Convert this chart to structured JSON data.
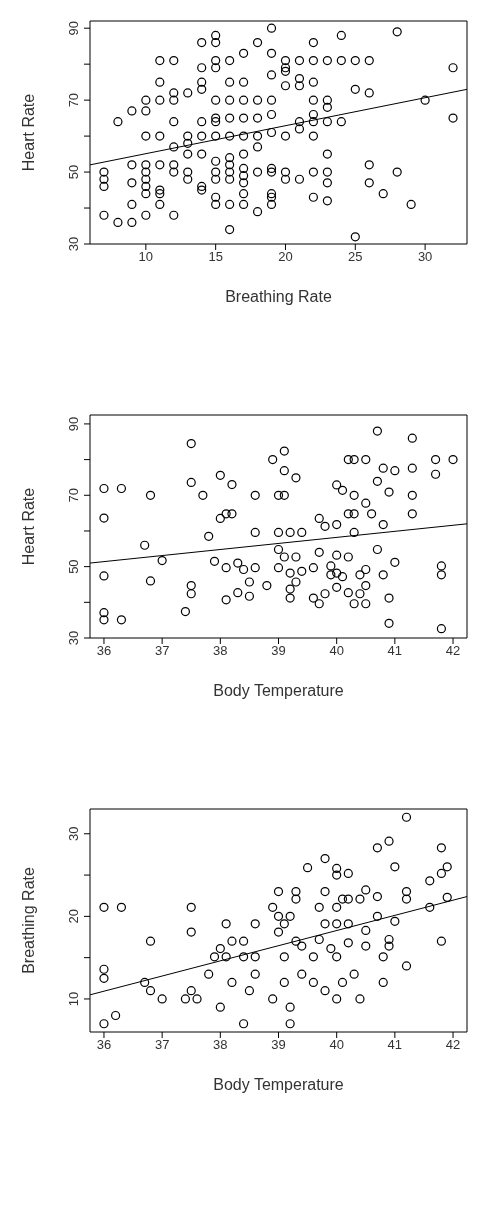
{
  "chart_data": [
    {
      "type": "scatter",
      "xlabel": "Breathing Rate",
      "ylabel": "Heart Rate",
      "xlim": [
        6,
        33
      ],
      "ylim": [
        30,
        92
      ],
      "xticks": [
        10,
        15,
        20,
        25,
        30
      ],
      "yticks": [
        30,
        {
          "value": 40,
          "label": null
        },
        50,
        {
          "value": 60,
          "label": null
        },
        70,
        {
          "value": 80,
          "label": null
        },
        90
      ],
      "grid": false,
      "legend": false,
      "series": [
        {
          "type": "scatter",
          "marker": "circle",
          "color": "#000000",
          "x": [
            7,
            7,
            7,
            7,
            8,
            8,
            9,
            9,
            9,
            9,
            9,
            10,
            10,
            10,
            10,
            10,
            10,
            10,
            10,
            10,
            11,
            11,
            11,
            11,
            11,
            11,
            11,
            11,
            12,
            12,
            12,
            12,
            12,
            12,
            12,
            12,
            13,
            13,
            13,
            13,
            13,
            13,
            14,
            14,
            14,
            14,
            14,
            14,
            14,
            14,
            14,
            15,
            15,
            15,
            15,
            15,
            15,
            15,
            15,
            15,
            15,
            15,
            15,
            15,
            16,
            16,
            16,
            16,
            16,
            16,
            16,
            16,
            16,
            16,
            16,
            17,
            17,
            17,
            17,
            17,
            17,
            17,
            17,
            17,
            17,
            17,
            18,
            18,
            18,
            18,
            18,
            18,
            18,
            19,
            19,
            19,
            19,
            19,
            19,
            19,
            19,
            19,
            19,
            19,
            20,
            20,
            20,
            20,
            20,
            20,
            20,
            21,
            21,
            21,
            21,
            21,
            21,
            22,
            22,
            22,
            22,
            22,
            22,
            22,
            22,
            22,
            23,
            23,
            23,
            23,
            23,
            23,
            23,
            23,
            24,
            24,
            24,
            25,
            25,
            25,
            26,
            26,
            26,
            26,
            27,
            28,
            28,
            29,
            30,
            32,
            32
          ],
          "values": [
            50,
            48,
            46,
            38,
            64,
            36,
            67,
            52,
            47,
            41,
            36,
            70,
            67,
            60,
            52,
            50,
            48,
            46,
            44,
            38,
            81,
            75,
            70,
            60,
            52,
            45,
            44,
            41,
            81,
            72,
            70,
            64,
            57,
            52,
            50,
            38,
            72,
            60,
            58,
            55,
            50,
            48,
            86,
            79,
            75,
            73,
            64,
            60,
            55,
            46,
            45,
            88,
            86,
            81,
            79,
            70,
            65,
            64,
            60,
            53,
            50,
            48,
            43,
            41,
            81,
            75,
            70,
            65,
            60,
            54,
            52,
            50,
            48,
            41,
            34,
            83,
            75,
            70,
            65,
            60,
            55,
            51,
            49,
            47,
            44,
            41,
            86,
            70,
            65,
            60,
            57,
            50,
            39,
            90,
            83,
            77,
            70,
            66,
            61,
            51,
            50,
            44,
            43,
            41,
            81,
            79,
            78,
            74,
            60,
            50,
            48,
            81,
            76,
            74,
            64,
            62,
            48,
            86,
            81,
            75,
            70,
            66,
            64,
            60,
            50,
            43,
            81,
            70,
            68,
            64,
            55,
            50,
            47,
            42,
            88,
            81,
            64,
            81,
            73,
            32,
            81,
            72,
            52,
            47,
            44,
            89,
            50,
            41,
            70,
            79,
            65
          ]
        },
        {
          "type": "line",
          "marker": "none",
          "color": "#000000",
          "x": [
            6,
            33
          ],
          "values": [
            52,
            73
          ]
        }
      ]
    },
    {
      "type": "scatter",
      "xlabel": "Body Temperature",
      "ylabel": "Heart Rate",
      "xlim": [
        35.76,
        42.24
      ],
      "ylim": [
        30,
        92.5
      ],
      "xticks": [
        36,
        37,
        38,
        39,
        40,
        41,
        42
      ],
      "yticks": [
        30,
        {
          "value": 40,
          "label": null
        },
        50,
        {
          "value": 60,
          "label": null
        },
        70,
        {
          "value": 80,
          "label": null
        },
        90
      ],
      "grid": false,
      "legend": false,
      "series": [
        {
          "type": "scatter",
          "marker": "circle",
          "color": "#000000",
          "x": [
            36,
            36.3,
            36,
            36.8,
            36,
            36.8,
            36.7,
            37,
            37.5,
            37.5,
            37.7,
            37.8,
            38,
            38.2,
            38,
            38.1,
            38.2,
            38.6,
            38.6,
            37.9,
            38.1,
            38.3,
            38.4,
            38.6,
            38.5,
            38.5,
            38.3,
            38.1,
            37.5,
            37.5,
            37.4,
            38.8,
            38.9,
            39.1,
            39.1,
            39.3,
            39,
            39.1,
            39,
            39.2,
            39.4,
            39,
            39.1,
            39.3,
            39,
            39.2,
            39.4,
            39.6,
            39.3,
            39.2,
            39.2,
            39.6,
            39.7,
            39.7,
            39.7,
            39.8,
            40,
            40,
            40.1,
            40.2,
            40.3,
            40.3,
            40.2,
            40.3,
            40.3,
            40.5,
            40.6,
            40.5,
            40.7,
            40.7,
            40.8,
            41,
            40.8,
            40.9,
            41.3,
            41.3,
            41.3,
            41.3,
            41.7,
            42,
            41.7,
            40.7,
            40,
            39.9,
            39.9,
            40,
            40.1,
            40.2,
            40.4,
            40.5,
            40.8,
            41,
            40.5,
            40.4,
            40.2,
            40.3,
            40.5,
            40,
            39.8,
            40.9,
            41.8,
            41.8,
            36,
            36,
            36.3,
            40.9,
            41.8
          ],
          "values": [
            71.9,
            71.9,
            63.6,
            70,
            47.4,
            46,
            56,
            51.7,
            84.5,
            73.6,
            70,
            58.5,
            75.6,
            73,
            63.5,
            64.8,
            64.8,
            70,
            59.6,
            51.5,
            49.7,
            51,
            49.2,
            49.7,
            45.7,
            41.7,
            42.7,
            40.7,
            44.7,
            42.4,
            37.4,
            44.7,
            80,
            82.4,
            76.9,
            74.9,
            70,
            70,
            59.6,
            59.6,
            59.6,
            54.8,
            52.7,
            52.7,
            49.7,
            48.2,
            48.7,
            49.7,
            45.7,
            43.7,
            41.2,
            41.2,
            39.6,
            54,
            63.5,
            61.3,
            61.8,
            72.9,
            71.4,
            80,
            80,
            70,
            64.8,
            64.8,
            59.6,
            67.8,
            64.8,
            80,
            88,
            73.9,
            77.6,
            76.9,
            61.8,
            70.9,
            86,
            77.6,
            70,
            64.8,
            80,
            80,
            75.9,
            54.8,
            53.2,
            50.2,
            47.7,
            48.2,
            47.2,
            52.7,
            47.7,
            49.2,
            47.7,
            51.2,
            44.7,
            42.4,
            42.7,
            39.6,
            39.6,
            44.2,
            42.4,
            41.2,
            50.2,
            47.7,
            37.1,
            35.1,
            35.1,
            34.1,
            32.6
          ]
        },
        {
          "type": "line",
          "marker": "none",
          "color": "#000000",
          "x": [
            35.76,
            42.24
          ],
          "values": [
            51,
            62
          ]
        }
      ]
    },
    {
      "type": "scatter",
      "xlabel": "Body Temperature",
      "ylabel": "Breathing Rate",
      "xlim": [
        35.76,
        42.24
      ],
      "ylim": [
        6,
        33
      ],
      "xticks": [
        36,
        37,
        38,
        39,
        40,
        41,
        42
      ],
      "yticks": [
        10,
        {
          "value": 15,
          "label": null
        },
        20,
        {
          "value": 25,
          "label": null
        },
        30
      ],
      "grid": false,
      "legend": false,
      "series": [
        {
          "type": "scatter",
          "marker": "circle",
          "color": "#000000",
          "x": [
            36,
            36.3,
            36.8,
            37.5,
            37.5,
            38.1,
            38.6,
            38.2,
            38.4,
            38,
            37.9,
            38.1,
            38.4,
            38.6,
            39,
            39.3,
            39.3,
            38.9,
            39,
            39.2,
            39.1,
            39,
            39.5,
            39.8,
            40,
            40.2,
            40,
            39.8,
            39.7,
            40,
            40.1,
            40.2,
            40.4,
            40.5,
            40.7,
            40.7,
            39.8,
            40,
            40.2,
            40.5,
            41,
            41,
            40.7,
            40.9,
            41.2,
            41.2,
            41.2,
            41.8,
            41.9,
            41.8,
            41.6,
            41.6,
            41.9,
            41.8,
            40.9,
            40.9,
            39.3,
            39.4,
            39.7,
            39.9,
            40.2,
            40.5,
            39.1,
            39.6,
            40,
            40.8,
            41.2,
            36,
            36,
            36,
            36.2,
            36.7,
            36.8,
            37,
            37.4,
            37.5,
            37.6,
            37.8,
            38,
            38.2,
            38.4,
            38.5,
            38.6,
            38.9,
            39.1,
            39.2,
            39.2,
            39.4,
            39.6,
            39.8,
            40,
            40.1,
            40.3,
            40.4,
            40.8
          ],
          "values": [
            21.1,
            21.1,
            17,
            21.1,
            18.1,
            19.1,
            19.1,
            17,
            17,
            16.1,
            15.1,
            15.1,
            15.1,
            15.1,
            23,
            23,
            22.1,
            21.1,
            20,
            20,
            19.1,
            18.1,
            25.9,
            27,
            25.8,
            25.2,
            25,
            23,
            21.1,
            21.1,
            22.1,
            22.1,
            22.1,
            23.2,
            22.4,
            20,
            19.1,
            19.1,
            19.1,
            18.3,
            19.4,
            26,
            28.3,
            29.1,
            32,
            23,
            22.1,
            28.3,
            26,
            25.2,
            24.3,
            21.1,
            22.3,
            17,
            17.2,
            16.4,
            17,
            16.4,
            17.2,
            16.1,
            16.8,
            16.4,
            15.1,
            15.1,
            15.1,
            15.1,
            14,
            13.6,
            12.5,
            7,
            8,
            12,
            11,
            10,
            10,
            11,
            10,
            13,
            9,
            12,
            7,
            11,
            13,
            10,
            12,
            9,
            7,
            13,
            12,
            11,
            10,
            12,
            13,
            10,
            12
          ]
        },
        {
          "type": "line",
          "marker": "none",
          "color": "#000000",
          "x": [
            35.76,
            42.24
          ],
          "values": [
            10.5,
            22.4
          ]
        }
      ]
    }
  ]
}
